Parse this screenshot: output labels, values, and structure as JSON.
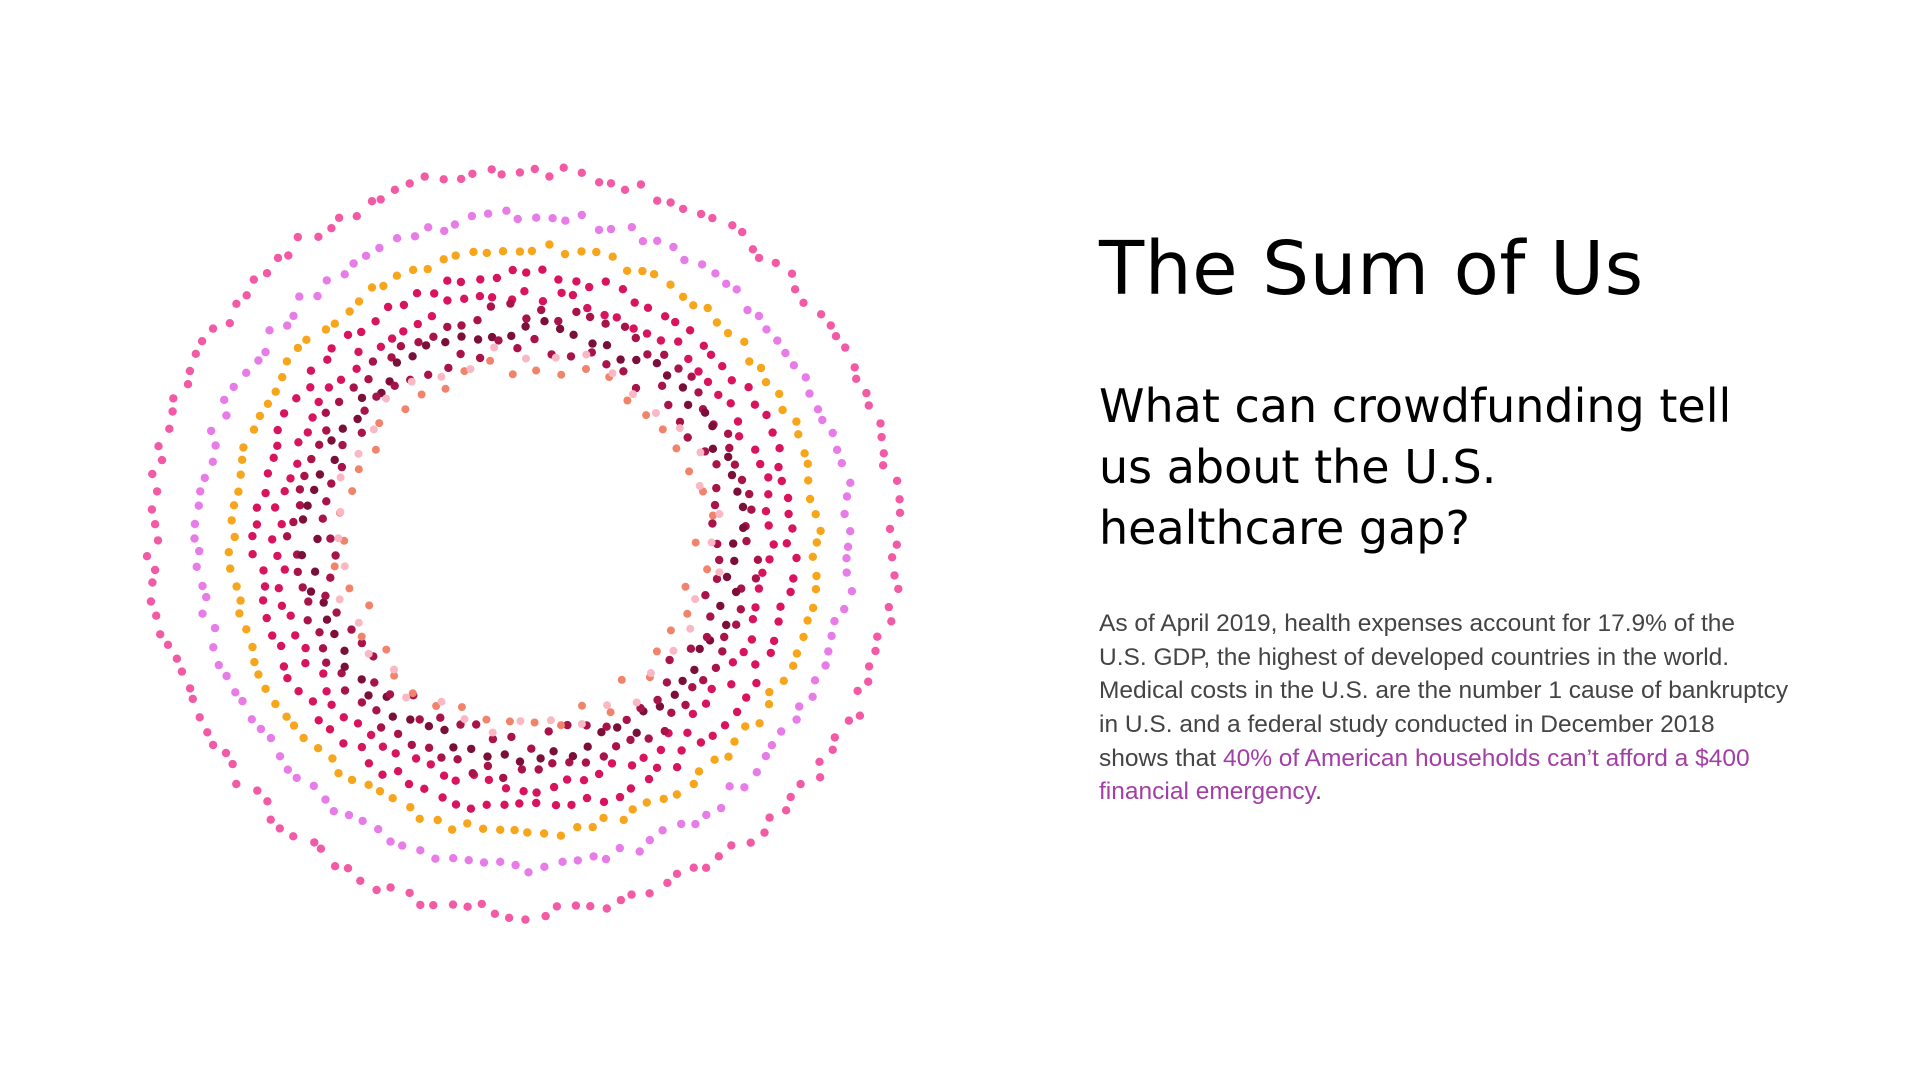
{
  "title": "The Sum of Us",
  "subtitle": "What can crowdfunding tell us about the U.S. healthcare gap?",
  "body": {
    "text_before": "As of April 2019, health expenses account for 17.9% of the U.S. GDP, the highest of developed countries in the world. Medical costs in the U.S. are the number 1 cause of bankruptcy in U.S. and a federal study conducted in December 2018 shows that ",
    "highlight": "40% of American households can’t afford a $400 financial emergency",
    "text_after": "."
  },
  "colors": {
    "highlight": "#a23ea6",
    "body_text": "#444444",
    "rings": [
      "#f25aa6",
      "#e77ce8",
      "#f7a51b",
      "#d9145f",
      "#a8144a",
      "#7a0f3a",
      "#f0836a",
      "#f9b8c4"
    ]
  }
}
